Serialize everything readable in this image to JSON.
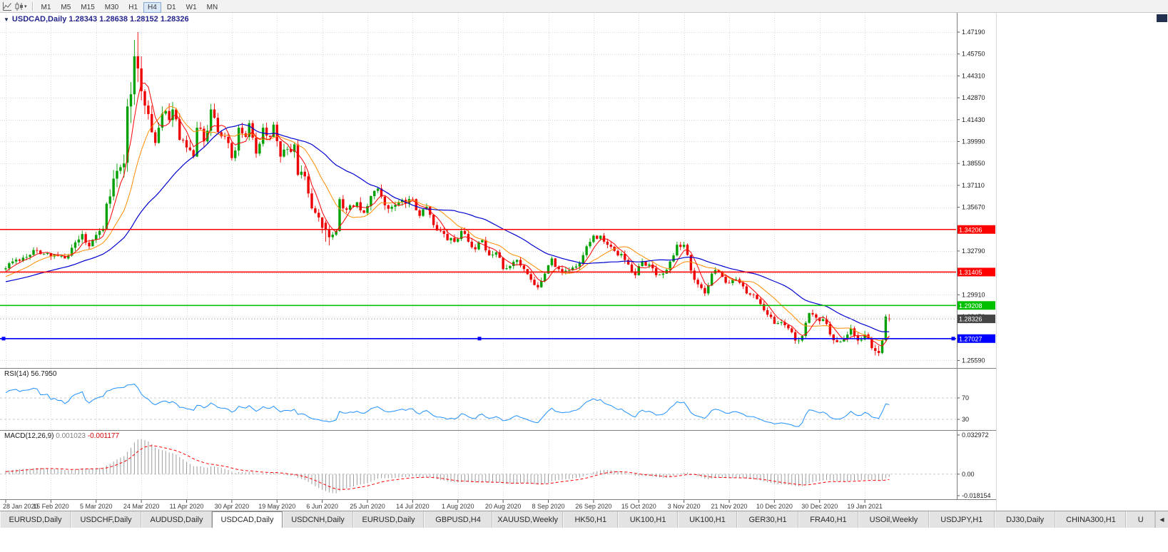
{
  "toolbar": {
    "timeframes": [
      "M1",
      "M5",
      "M15",
      "M30",
      "H1",
      "H4",
      "D1",
      "W1",
      "MN"
    ],
    "active_timeframe": "H4"
  },
  "chart": {
    "title": "USDCAD,Daily 1.28343 1.28638 1.28152 1.28326",
    "symbol": "USDCAD,Daily",
    "ohlc": {
      "open": "1.28343",
      "high": "1.28638",
      "low": "1.28152",
      "close": "1.28326"
    }
  },
  "indicators": {
    "rsi": {
      "name": "RSI(14)",
      "value": "56.7950",
      "levels": [
        70,
        30
      ],
      "color": "#1E90FF"
    },
    "macd": {
      "name": "MACD(12,26,9)",
      "main_value": "0.001023",
      "signal_value": "-0.001177",
      "scale_labels": [
        "0.032972",
        "0.00",
        "-0.018154"
      ],
      "histogram_color": "#9c9c9c",
      "signal_color": "#FF0000"
    }
  },
  "price_axis": {
    "labels": [
      "1.47190",
      "1.45750",
      "1.44310",
      "1.42870",
      "1.41430",
      "1.39990",
      "1.38550",
      "1.37110",
      "1.35670",
      "1.34230",
      "1.32790",
      "1.31350",
      "1.29910",
      "1.28470",
      "1.27030",
      "1.25590"
    ]
  },
  "time_axis": {
    "labels": [
      "28 Jan 2020",
      "15 Feb 2020",
      "5 Mar 2020",
      "24 Mar 2020",
      "11 Apr 2020",
      "30 Apr 2020",
      "19 May 2020",
      "6 Jun 2020",
      "25 Jun 2020",
      "14 Jul 2020",
      "1 Aug 2020",
      "20 Aug 2020",
      "8 Sep 2020",
      "26 Sep 2020",
      "15 Oct 2020",
      "3 Nov 2020",
      "21 Nov 2020",
      "10 Dec 2020",
      "30 Dec 2020",
      "19 Jan 2021"
    ]
  },
  "price_lines": [
    {
      "label": "1.34206",
      "price": 1.34206,
      "color": "#FF0000",
      "handles": false
    },
    {
      "label": "1.31405",
      "price": 1.31405,
      "color": "#FF0000",
      "handles": false
    },
    {
      "label": "1.29208",
      "price": 1.29208,
      "color": "#00C000",
      "handles": false
    },
    {
      "label": "1.27027",
      "price": 1.27027,
      "color": "#0000FF",
      "handles": true
    }
  ],
  "current_price": {
    "label": "1.28326",
    "value": 1.28326,
    "box_color": "#454545"
  },
  "chart_data": {
    "type": "candlestick",
    "symbol": "USDCAD",
    "timeframe": "Daily",
    "days": 255,
    "pre_days": 40,
    "y_domain": [
      1.2514,
      1.4841
    ],
    "colors": {
      "up": "#00A000",
      "down": "#ED0000",
      "ma_fast": "#FF0000",
      "ma_mid": "#FF8C00",
      "ma_slow": "#0000D0"
    },
    "moving_averages": [
      {
        "period": 5,
        "color": "#FF0000"
      },
      {
        "period": 13,
        "color": "#FF8C00"
      },
      {
        "period": 34,
        "color": "#0000D0"
      }
    ],
    "close_anchors": [
      [
        -40,
        1.2995
      ],
      [
        -30,
        1.305
      ],
      [
        -20,
        1.306
      ],
      [
        -10,
        1.308
      ],
      [
        -4,
        1.312
      ],
      [
        0,
        1.3165
      ],
      [
        2,
        1.321
      ],
      [
        5,
        1.3235
      ],
      [
        8,
        1.3285
      ],
      [
        11,
        1.326
      ],
      [
        14,
        1.3255
      ],
      [
        17,
        1.323
      ],
      [
        19,
        1.33
      ],
      [
        21,
        1.3355
      ],
      [
        22,
        1.339
      ],
      [
        24,
        1.331
      ],
      [
        26,
        1.3385
      ],
      [
        28,
        1.3425
      ],
      [
        29,
        1.359
      ],
      [
        31,
        1.3755
      ],
      [
        33,
        1.383
      ],
      [
        34,
        1.3855
      ],
      [
        35,
        1.423
      ],
      [
        37,
        1.456
      ],
      [
        38,
        1.448
      ],
      [
        39,
        1.433
      ],
      [
        41,
        1.418
      ],
      [
        42,
        1.406
      ],
      [
        43,
        1.399
      ],
      [
        44,
        1.409
      ],
      [
        46,
        1.42
      ],
      [
        47,
        1.414
      ],
      [
        48,
        1.421
      ],
      [
        50,
        1.401
      ],
      [
        52,
        1.396
      ],
      [
        54,
        1.39
      ],
      [
        55,
        1.409
      ],
      [
        57,
        1.4
      ],
      [
        59,
        1.421
      ],
      [
        61,
        1.406
      ],
      [
        63,
        1.403
      ],
      [
        65,
        1.389
      ],
      [
        66,
        1.394
      ],
      [
        67,
        1.409
      ],
      [
        69,
        1.403
      ],
      [
        70,
        1.412
      ],
      [
        72,
        1.392
      ],
      [
        74,
        1.409
      ],
      [
        76,
        1.403
      ],
      [
        77,
        1.411
      ],
      [
        79,
        1.39
      ],
      [
        81,
        1.395
      ],
      [
        83,
        1.398
      ],
      [
        84,
        1.378
      ],
      [
        86,
        1.377
      ],
      [
        88,
        1.356
      ],
      [
        90,
        1.35
      ],
      [
        92,
        1.342
      ],
      [
        93,
        1.337
      ],
      [
        95,
        1.341
      ],
      [
        96,
        1.362
      ],
      [
        98,
        1.355
      ],
      [
        101,
        1.36
      ],
      [
        103,
        1.353
      ],
      [
        105,
        1.364
      ],
      [
        107,
        1.369
      ],
      [
        109,
        1.358
      ],
      [
        111,
        1.357
      ],
      [
        113,
        1.36
      ],
      [
        115,
        1.359
      ],
      [
        117,
        1.362
      ],
      [
        119,
        1.351
      ],
      [
        121,
        1.357
      ],
      [
        123,
        1.345
      ],
      [
        125,
        1.341
      ],
      [
        127,
        1.335
      ],
      [
        129,
        1.334
      ],
      [
        131,
        1.341
      ],
      [
        133,
        1.334
      ],
      [
        135,
        1.329
      ],
      [
        137,
        1.335
      ],
      [
        139,
        1.325
      ],
      [
        141,
        1.327
      ],
      [
        143,
        1.316
      ],
      [
        145,
        1.318
      ],
      [
        147,
        1.322
      ],
      [
        149,
        1.316
      ],
      [
        151,
        1.309
      ],
      [
        153,
        1.304
      ],
      [
        155,
        1.313
      ],
      [
        157,
        1.323
      ],
      [
        159,
        1.316
      ],
      [
        161,
        1.315
      ],
      [
        163,
        1.317
      ],
      [
        165,
        1.32
      ],
      [
        167,
        1.331
      ],
      [
        169,
        1.338
      ],
      [
        171,
        1.338
      ],
      [
        173,
        1.332
      ],
      [
        175,
        1.328
      ],
      [
        177,
        1.326
      ],
      [
        179,
        1.319
      ],
      [
        181,
        1.312
      ],
      [
        183,
        1.321
      ],
      [
        185,
        1.319
      ],
      [
        187,
        1.312
      ],
      [
        189,
        1.313
      ],
      [
        191,
        1.321
      ],
      [
        193,
        1.332
      ],
      [
        195,
        1.332
      ],
      [
        197,
        1.315
      ],
      [
        199,
        1.306
      ],
      [
        201,
        1.3
      ],
      [
        203,
        1.313
      ],
      [
        205,
        1.314
      ],
      [
        207,
        1.307
      ],
      [
        209,
        1.309
      ],
      [
        211,
        1.307
      ],
      [
        213,
        1.3
      ],
      [
        215,
        1.299
      ],
      [
        217,
        1.293
      ],
      [
        219,
        1.286
      ],
      [
        221,
        1.28
      ],
      [
        223,
        1.281
      ],
      [
        225,
        1.277
      ],
      [
        227,
        1.269
      ],
      [
        229,
        1.272
      ],
      [
        231,
        1.287
      ],
      [
        233,
        1.284
      ],
      [
        235,
        1.283
      ],
      [
        237,
        1.273
      ],
      [
        239,
        1.268
      ],
      [
        241,
        1.27
      ],
      [
        243,
        1.277
      ],
      [
        245,
        1.269
      ],
      [
        247,
        1.273
      ],
      [
        249,
        1.264
      ],
      [
        251,
        1.26
      ],
      [
        252,
        1.265
      ],
      [
        253,
        1.278
      ],
      [
        254,
        1.28326
      ]
    ],
    "volatility_anchors": [
      [
        -40,
        0.004
      ],
      [
        0,
        0.004
      ],
      [
        26,
        0.005
      ],
      [
        30,
        0.011
      ],
      [
        34,
        0.014
      ],
      [
        40,
        0.013
      ],
      [
        48,
        0.01
      ],
      [
        60,
        0.008
      ],
      [
        75,
        0.007
      ],
      [
        88,
        0.008
      ],
      [
        100,
        0.006
      ],
      [
        120,
        0.005
      ],
      [
        150,
        0.005
      ],
      [
        180,
        0.0045
      ],
      [
        210,
        0.004
      ],
      [
        240,
        0.0045
      ],
      [
        254,
        0.005
      ]
    ],
    "override_candles": {
      "35": [
        1.386,
        1.428,
        1.38,
        1.423
      ],
      "36": [
        1.423,
        1.439,
        1.412,
        1.431
      ],
      "37": [
        1.431,
        1.4668,
        1.424,
        1.456
      ],
      "38": [
        1.456,
        1.4719,
        1.439,
        1.448
      ],
      "39": [
        1.448,
        1.456,
        1.427,
        1.433
      ],
      "92": [
        1.3465,
        1.348,
        1.334,
        1.342
      ],
      "93": [
        1.342,
        1.3445,
        1.3315,
        1.337
      ],
      "249": [
        1.2705,
        1.2715,
        1.2628,
        1.264
      ],
      "250": [
        1.264,
        1.2662,
        1.2592,
        1.2622
      ],
      "251": [
        1.2622,
        1.2655,
        1.2588,
        1.2608
      ],
      "252": [
        1.2608,
        1.2702,
        1.26,
        1.2692
      ],
      "253": [
        1.2692,
        1.2862,
        1.2684,
        1.2848
      ],
      "254": [
        1.28343,
        1.28638,
        1.28152,
        1.28326
      ]
    }
  },
  "tabs": {
    "active_index": 3,
    "scroll_left_label": "◀",
    "items": [
      "EURUSD,Daily",
      "USDCHF,Daily",
      "AUDUSD,Daily",
      "USDCAD,Daily",
      "USDCNH,Daily",
      "EURUSD,Daily",
      "GBPUSD,H4",
      "XAUUSD,Weekly",
      "HK50,H1",
      "UK100,H1",
      "UK100,H1",
      "GER30,H1",
      "FRA40,H1",
      "USOil,Weekly",
      "USDJPY,H1",
      "DJ30,Daily",
      "CHINA300,H1",
      "U"
    ]
  }
}
